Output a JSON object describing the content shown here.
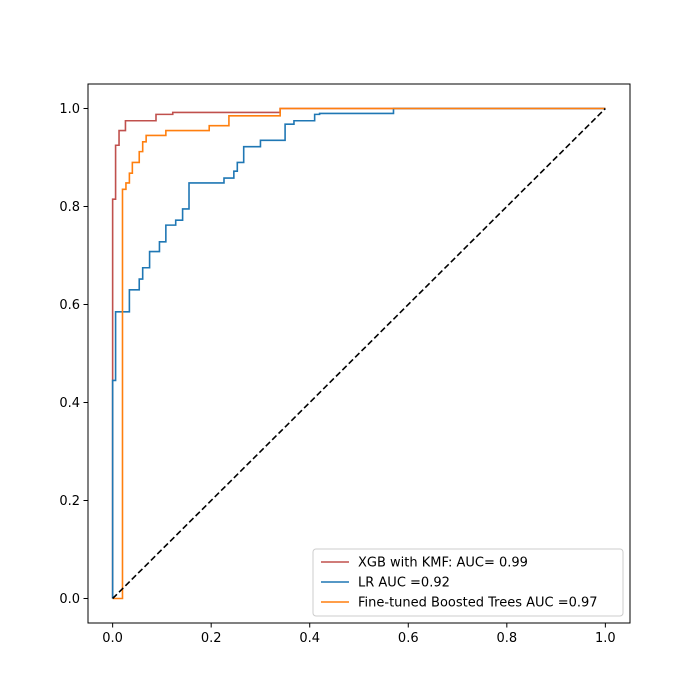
{
  "chart_data": {
    "type": "line",
    "title": "",
    "xlabel": "",
    "ylabel": "",
    "xlim": [
      -0.05,
      1.05
    ],
    "ylim": [
      -0.05,
      1.05
    ],
    "xticks": [
      0.0,
      0.2,
      0.4,
      0.6,
      0.8,
      1.0
    ],
    "yticks": [
      0.0,
      0.2,
      0.4,
      0.6,
      0.8,
      1.0
    ],
    "xtick_labels": [
      "0.0",
      "0.2",
      "0.4",
      "0.6",
      "0.8",
      "1.0"
    ],
    "ytick_labels": [
      "0.0",
      "0.2",
      "0.4",
      "0.6",
      "0.8",
      "1.0"
    ],
    "grid": false,
    "legend_position": "lower-right",
    "series": [
      {
        "name": "XGB with KMF: AUC= 0.99",
        "color": "#c0504d",
        "style": "solid",
        "x": [
          0.0,
          0.0,
          0.006,
          0.006,
          0.013,
          0.013,
          0.026,
          0.026,
          0.088,
          0.088,
          0.122,
          0.122,
          0.34,
          0.34,
          1.0
        ],
        "y": [
          0.0,
          0.815,
          0.815,
          0.925,
          0.925,
          0.955,
          0.955,
          0.975,
          0.975,
          0.988,
          0.988,
          0.992,
          0.992,
          1.0,
          1.0
        ]
      },
      {
        "name": "LR AUC =0.92",
        "color": "#1f77b4",
        "style": "solid",
        "x": [
          0.0,
          0.0,
          0.006,
          0.006,
          0.013,
          0.013,
          0.034,
          0.034,
          0.054,
          0.054,
          0.061,
          0.061,
          0.075,
          0.075,
          0.095,
          0.095,
          0.108,
          0.108,
          0.128,
          0.128,
          0.142,
          0.142,
          0.155,
          0.155,
          0.226,
          0.226,
          0.246,
          0.246,
          0.253,
          0.253,
          0.266,
          0.266,
          0.3,
          0.3,
          0.35,
          0.35,
          0.368,
          0.368,
          0.41,
          0.41,
          0.42,
          0.42,
          0.57,
          0.57,
          1.0
        ],
        "y": [
          0.0,
          0.445,
          0.445,
          0.585,
          0.585,
          0.585,
          0.585,
          0.63,
          0.63,
          0.652,
          0.652,
          0.675,
          0.675,
          0.708,
          0.708,
          0.728,
          0.728,
          0.762,
          0.762,
          0.772,
          0.772,
          0.795,
          0.795,
          0.848,
          0.848,
          0.858,
          0.858,
          0.872,
          0.872,
          0.89,
          0.89,
          0.922,
          0.922,
          0.935,
          0.935,
          0.968,
          0.968,
          0.975,
          0.975,
          0.988,
          0.988,
          0.99,
          0.99,
          1.0,
          1.0
        ]
      },
      {
        "name": "Fine-tuned Boosted Trees AUC =0.97",
        "color": "#ff7f0e",
        "style": "solid",
        "x": [
          0.0,
          0.0,
          0.02,
          0.02,
          0.027,
          0.027,
          0.034,
          0.034,
          0.04,
          0.04,
          0.054,
          0.054,
          0.061,
          0.061,
          0.068,
          0.068,
          0.081,
          0.081,
          0.108,
          0.108,
          0.122,
          0.122,
          0.196,
          0.196,
          0.236,
          0.236,
          0.34,
          0.34,
          1.0
        ],
        "y": [
          0.0,
          0.0,
          0.0,
          0.835,
          0.835,
          0.848,
          0.848,
          0.868,
          0.868,
          0.89,
          0.89,
          0.912,
          0.912,
          0.932,
          0.932,
          0.945,
          0.945,
          0.945,
          0.945,
          0.955,
          0.955,
          0.955,
          0.955,
          0.965,
          0.965,
          0.985,
          0.985,
          1.0,
          1.0
        ]
      },
      {
        "name": "",
        "color": "#000000",
        "style": "dashed",
        "x": [
          0.0,
          1.0
        ],
        "y": [
          0.0,
          1.0
        ]
      }
    ],
    "legend_entries": [
      "XGB with KMF: AUC= 0.99",
      "LR AUC =0.92",
      "Fine-tuned Boosted Trees AUC =0.97"
    ]
  }
}
